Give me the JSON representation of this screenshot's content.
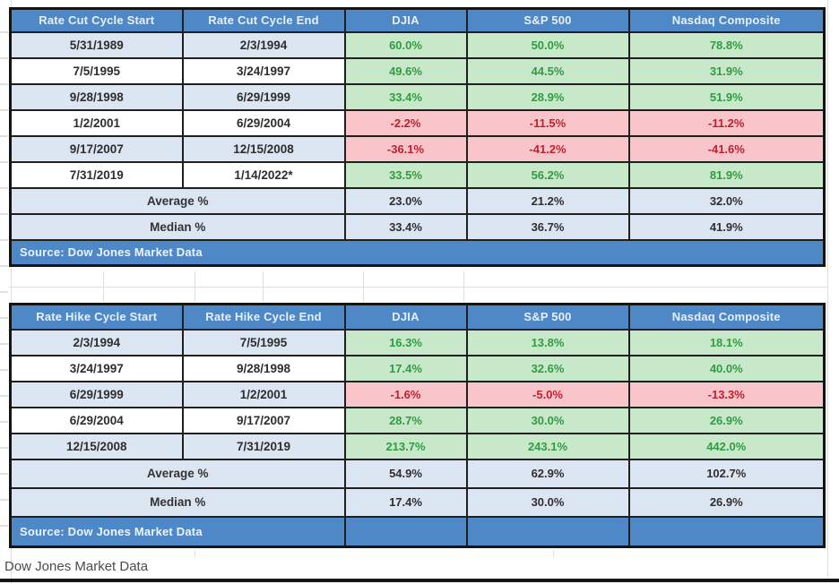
{
  "caption": "Dow Jones Market Data",
  "colors": {
    "header_blue": "#4f88c7",
    "row_alt_blue": "#dce6f2",
    "positive_fill": "#c8e9c9",
    "positive_text": "#319b44",
    "negative_fill": "#f8c6ca",
    "negative_text": "#c0202d",
    "border_dark": "#1f1f1f"
  },
  "chart_data": {
    "type": "table",
    "tables": [
      {
        "name": "rate-cut-cycles",
        "headers": [
          "Rate Cut Cycle Start",
          "Rate Cut Cycle End",
          "DJIA",
          "S&P 500",
          "Nasdaq Composite"
        ],
        "rows": [
          {
            "start": "5/31/1989",
            "end": "2/3/1994",
            "values": [
              "60.0%",
              "50.0%",
              "78.8%"
            ]
          },
          {
            "start": "7/5/1995",
            "end": "3/24/1997",
            "values": [
              "49.6%",
              "44.5%",
              "31.9%"
            ]
          },
          {
            "start": "9/28/1998",
            "end": "6/29/1999",
            "values": [
              "33.4%",
              "28.9%",
              "51.9%"
            ]
          },
          {
            "start": "1/2/2001",
            "end": "6/29/2004",
            "values": [
              "-2.2%",
              "-11.5%",
              "-11.2%"
            ]
          },
          {
            "start": "9/17/2007",
            "end": "12/15/2008",
            "values": [
              "-36.1%",
              "-41.2%",
              "-41.6%"
            ]
          },
          {
            "start": "7/31/2019",
            "end": "1/14/2022*",
            "values": [
              "33.5%",
              "56.2%",
              "81.9%"
            ]
          }
        ],
        "summary": [
          {
            "label": "Average %",
            "values": [
              "23.0%",
              "21.2%",
              "32.0%"
            ]
          },
          {
            "label": "Median %",
            "values": [
              "33.4%",
              "36.7%",
              "41.9%"
            ]
          }
        ],
        "source": "Source: Dow Jones Market Data",
        "source_split": false
      },
      {
        "name": "rate-hike-cycles",
        "headers": [
          "Rate Hike Cycle Start",
          "Rate Hike Cycle End",
          "DJIA",
          "S&P 500",
          "Nasdaq Composite"
        ],
        "rows": [
          {
            "start": "2/3/1994",
            "end": "7/5/1995",
            "values": [
              "16.3%",
              "13.8%",
              "18.1%"
            ]
          },
          {
            "start": "3/24/1997",
            "end": "9/28/1998",
            "values": [
              "17.4%",
              "32.6%",
              "40.0%"
            ]
          },
          {
            "start": "6/29/1999",
            "end": "1/2/2001",
            "values": [
              "-1.6%",
              "-5.0%",
              "-13.3%"
            ]
          },
          {
            "start": "6/29/2004",
            "end": "9/17/2007",
            "values": [
              "28.7%",
              "30.0%",
              "26.9%"
            ]
          },
          {
            "start": "12/15/2008",
            "end": "7/31/2019",
            "values": [
              "213.7%",
              "243.1%",
              "442.0%"
            ]
          }
        ],
        "summary": [
          {
            "label": "Average %",
            "values": [
              "54.9%",
              "62.9%",
              "102.7%"
            ]
          },
          {
            "label": "Median %",
            "values": [
              "17.4%",
              "30.0%",
              "26.9%"
            ]
          }
        ],
        "source": "Source: Dow Jones Market Data",
        "source_split": true
      }
    ]
  }
}
